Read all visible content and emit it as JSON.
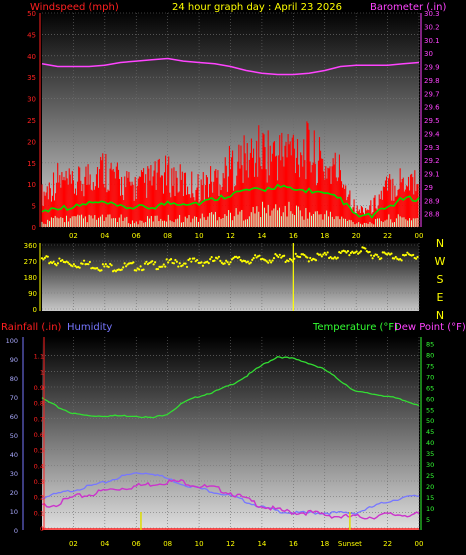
{
  "header": {
    "left_title": "Windspeed (mph)",
    "center_title": "24 hour graph day : April 23 2026",
    "right_title": "Barometer (.in)"
  },
  "colors": {
    "windspeed": "#ff2020",
    "barometer": "#ff44ff",
    "gust_fill": "#ff0000",
    "avg_wind": "#00dd00",
    "calm_wind": "#ccffcc",
    "direction": "#ffff00",
    "temperature": "#33dd33",
    "dewpoint": "#cc33cc",
    "humidity": "#7777ff",
    "rainfall": "#ff2020",
    "time_labels": "#ffff00",
    "temp_axis": "#33ff33",
    "compass": "#ffff00"
  },
  "time_axis": {
    "labels": [
      "02",
      "04",
      "06",
      "08",
      "10",
      "12",
      "14",
      "16",
      "18",
      "20",
      "22",
      "00"
    ],
    "bottom_labels": [
      "02",
      "04",
      "06",
      "08",
      "10",
      "12",
      "14",
      "16",
      "18",
      "",
      "22",
      "00"
    ],
    "sunset_label": "Sunset"
  },
  "chart_data": [
    {
      "type": "line",
      "title": "24 hour graph day : April 23 2026",
      "ylabel": "Windspeed (mph)",
      "ylim": [
        0,
        50
      ],
      "y_ticks": [
        "0",
        "5",
        "10",
        "15",
        "20",
        "25",
        "30",
        "35",
        "40",
        "45",
        "50"
      ],
      "y2label": "Barometer (.in)",
      "y2lim": [
        28.7,
        30.3
      ],
      "y2_ticks": [
        "28.8",
        "28.9",
        "29",
        "29.1",
        "29.2",
        "29.3",
        "29.4",
        "29.5",
        "29.6",
        "29.7",
        "29.8",
        "29.9",
        "30",
        "30.1",
        "30.2",
        "30.3"
      ],
      "x_hours": [
        0,
        1,
        2,
        3,
        4,
        5,
        6,
        7,
        8,
        9,
        10,
        11,
        12,
        13,
        14,
        15,
        16,
        17,
        18,
        19,
        20,
        21,
        22,
        23,
        24
      ],
      "series": [
        {
          "name": "Windspeed (mph)",
          "axis": "left",
          "kind": "gust_band",
          "values": [
            8,
            12,
            10,
            13,
            15,
            11,
            10,
            12,
            13,
            11,
            10,
            12,
            15,
            17,
            19,
            18,
            20,
            19,
            15,
            14,
            4,
            5,
            10,
            12,
            12
          ]
        },
        {
          "name": "avg",
          "axis": "left",
          "kind": "line",
          "values": [
            3,
            4,
            4,
            5,
            5,
            4,
            4,
            4,
            5,
            5,
            5,
            6,
            7,
            8,
            8,
            9,
            8,
            8,
            7,
            6,
            2,
            2,
            4,
            6,
            6
          ]
        },
        {
          "name": "calm",
          "axis": "left",
          "kind": "low_band",
          "values": [
            1,
            2,
            2,
            2,
            2,
            2,
            1,
            2,
            2,
            2,
            2,
            3,
            3,
            3,
            4,
            4,
            4,
            3,
            3,
            2,
            1,
            1,
            2,
            2,
            2
          ]
        },
        {
          "name": "Barometer (.in)",
          "axis": "right",
          "kind": "line",
          "values": [
            29.92,
            29.9,
            29.9,
            29.9,
            29.91,
            29.93,
            29.94,
            29.95,
            29.96,
            29.94,
            29.93,
            29.92,
            29.9,
            29.87,
            29.85,
            29.84,
            29.84,
            29.85,
            29.87,
            29.9,
            29.91,
            29.91,
            29.91,
            29.92,
            29.93
          ]
        }
      ]
    },
    {
      "type": "scatter",
      "ylabel": "",
      "ylim": [
        0,
        360
      ],
      "y_ticks": [
        "0",
        "90",
        "180",
        "270",
        "360"
      ],
      "compass": [
        "N",
        "W",
        "S",
        "E",
        "N"
      ],
      "x_hours": [
        0,
        1,
        2,
        3,
        4,
        5,
        6,
        7,
        8,
        9,
        10,
        11,
        12,
        13,
        14,
        15,
        16,
        17,
        18,
        19,
        20,
        21,
        22,
        23,
        24
      ],
      "series": [
        {
          "name": "direction",
          "values": [
            275,
            265,
            255,
            250,
            235,
            235,
            240,
            245,
            255,
            260,
            265,
            270,
            275,
            275,
            280,
            285,
            285,
            290,
            295,
            305,
            330,
            310,
            300,
            295,
            295
          ]
        }
      ],
      "event_markers": [
        {
          "hour": 16.0,
          "kind": "spike"
        }
      ]
    },
    {
      "type": "line",
      "ylabel": "Rainfall (.in)",
      "ylim": [
        0,
        1.2
      ],
      "y_ticks": [
        "0",
        "0.1",
        "0.2",
        "0.3",
        "0.4",
        "0.5",
        "0.6",
        "0.7",
        "0.8",
        "0.9",
        "1",
        "1.1"
      ],
      "y1_label_humidity": "Humidity",
      "humidity_ticks": [
        "0",
        "10",
        "20",
        "30",
        "40",
        "50",
        "60",
        "70",
        "80",
        "90",
        "100"
      ],
      "y2label": "Temperature (°F)",
      "y2_dew_label": "Dew Point (°F)",
      "y2lim": [
        0,
        87
      ],
      "y2_ticks": [
        "5",
        "10",
        "15",
        "20",
        "25",
        "30",
        "35",
        "40",
        "45",
        "50",
        "55",
        "60",
        "65",
        "70",
        "75",
        "80",
        "85"
      ],
      "x_hours": [
        0,
        1,
        2,
        3,
        4,
        5,
        6,
        7,
        8,
        9,
        10,
        11,
        12,
        13,
        14,
        15,
        16,
        17,
        18,
        19,
        20,
        21,
        22,
        23,
        24
      ],
      "series": [
        {
          "name": "Temperature (°F)",
          "axis": "right",
          "values": [
            60,
            56,
            53,
            52,
            52,
            52,
            52,
            51,
            53,
            58,
            61,
            63,
            66,
            70,
            75,
            79,
            78,
            76,
            73,
            68,
            63,
            62,
            61,
            59,
            57
          ]
        },
        {
          "name": "Dew Point (°F)",
          "axis": "right",
          "values": [
            11,
            12,
            15,
            16,
            18,
            19,
            20,
            21,
            22,
            22,
            20,
            19,
            17,
            14,
            11,
            9,
            8,
            8,
            7,
            6,
            6,
            6,
            7,
            7,
            7
          ]
        },
        {
          "name": "Humidity",
          "axis": "humidity",
          "values": [
            17,
            19,
            21,
            23,
            25,
            28,
            30,
            30,
            27,
            24,
            22,
            20,
            18,
            15,
            12,
            10,
            9,
            9,
            9,
            9,
            9,
            12,
            15,
            17,
            18
          ]
        },
        {
          "name": "Rainfall (.in)",
          "axis": "left",
          "values": [
            0,
            0,
            0,
            0,
            0,
            0,
            0,
            0,
            0,
            0,
            0,
            0,
            0,
            0,
            0,
            0,
            0,
            0,
            0,
            0,
            0,
            0,
            0,
            0,
            0
          ]
        }
      ],
      "event_markers": [
        {
          "hour": 6.3,
          "kind": "sunrise"
        },
        {
          "hour": 19.6,
          "kind": "sunset"
        }
      ]
    }
  ]
}
